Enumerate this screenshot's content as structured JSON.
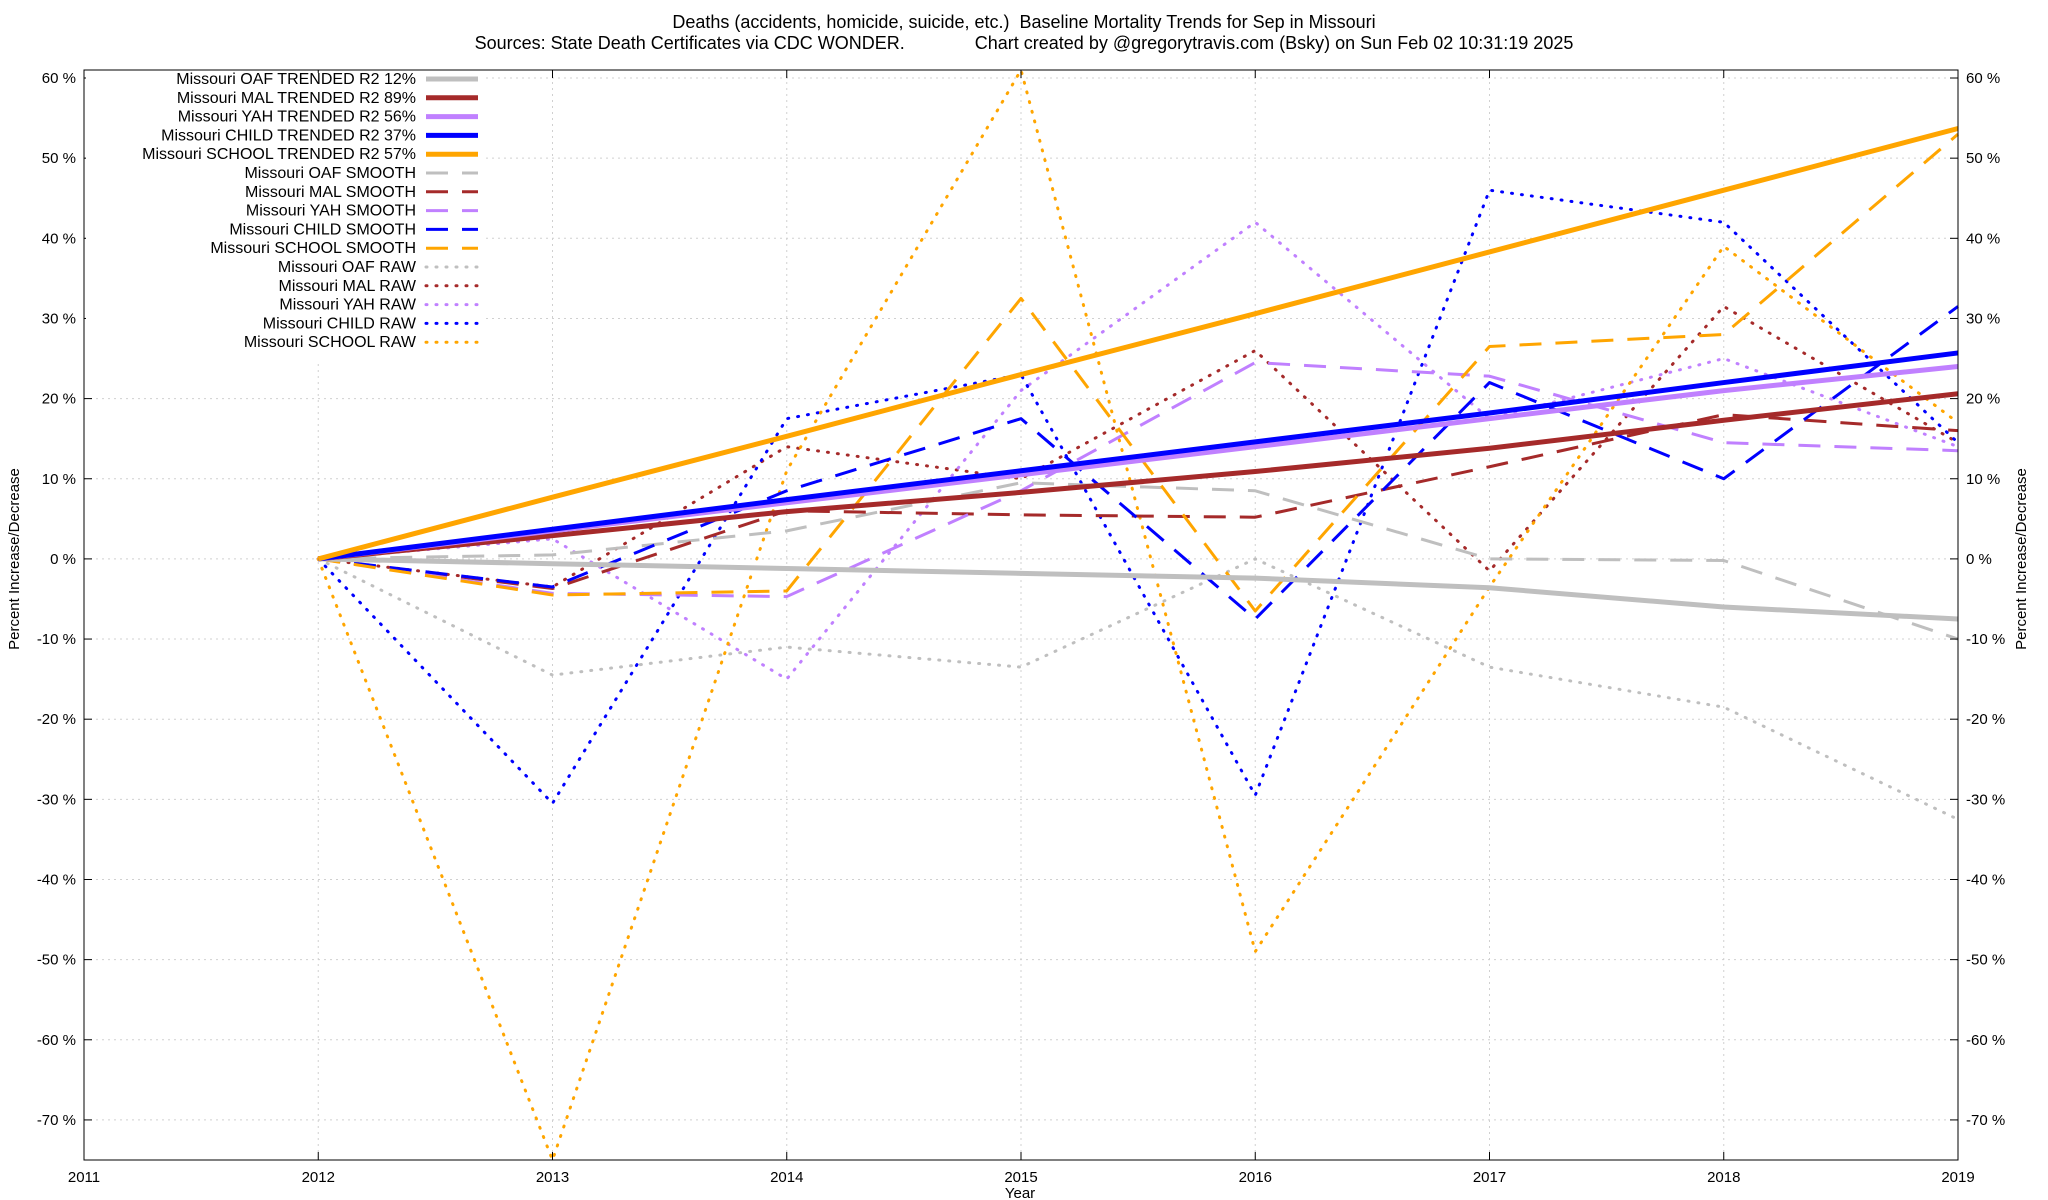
{
  "chart_data": {
    "type": "line",
    "title": "Deaths (accidents, homicide, suicide, etc.)  Baseline Mortality Trends for Sep in Missouri",
    "subtitle": "Sources: State Death Certificates via CDC WONDER.              Chart created by @gregorytravis.com (Bsky) on Sun Feb 02 10:31:19 2025",
    "xlabel": "Year",
    "ylabel": "Percent Increase/Decrease",
    "y2label": "Percent Increase/Decrease",
    "xlim": [
      2011,
      2019
    ],
    "ylim": [
      -75,
      61
    ],
    "x_ticks": [
      "2011",
      "2012",
      "2013",
      "2014",
      "2015",
      "2016",
      "2017",
      "2018",
      "2019"
    ],
    "y_ticks": [
      "60 %",
      "50 %",
      "40 %",
      "30 %",
      "20 %",
      "10 %",
      "0 %",
      "-10 %",
      "-20 %",
      "-30 %",
      "-40 %",
      "-50 %",
      "-60 %",
      "-70 %"
    ],
    "y_tick_values": [
      60,
      50,
      40,
      30,
      20,
      10,
      0,
      -10,
      -20,
      -30,
      -40,
      -50,
      -60,
      -70
    ],
    "grid": true,
    "legend_position": "top-left",
    "x": [
      2012,
      2013,
      2014,
      2015,
      2016,
      2017,
      2018,
      2019
    ],
    "series": [
      {
        "name": "Missouri OAF TRENDED R2  12%",
        "style": "trend",
        "color": "#bfbfbf",
        "values": [
          0,
          -0.6,
          -1.2,
          -1.8,
          -2.4,
          -3.6,
          -6,
          -7.5
        ]
      },
      {
        "name": "Missouri MAL TRENDED R2  89%",
        "style": "trend",
        "color": "#a52a2a",
        "values": [
          0,
          2.9,
          5.9,
          8.3,
          10.9,
          13.8,
          17.3,
          20.6
        ]
      },
      {
        "name": "Missouri YAH TRENDED R2  56%",
        "style": "trend",
        "color": "#c080ff",
        "values": [
          0,
          3.5,
          7,
          10.5,
          14,
          17.5,
          21,
          24
        ]
      },
      {
        "name": "Missouri CHILD TRENDED R2  37%",
        "style": "trend",
        "color": "#0000ff",
        "values": [
          0,
          3.7,
          7.4,
          11,
          14.6,
          18.2,
          22,
          25.7
        ]
      },
      {
        "name": "Missouri SCHOOL TRENDED R2  57%",
        "style": "trend",
        "color": "#ffa500",
        "values": [
          0,
          7.7,
          15.3,
          23,
          30.6,
          38.3,
          46,
          53.7
        ]
      },
      {
        "name": "Missouri OAF SMOOTH",
        "style": "smooth",
        "color": "#bfbfbf",
        "values": [
          0,
          0.5,
          3.5,
          9.5,
          8.5,
          0,
          -0.2,
          -10
        ]
      },
      {
        "name": "Missouri MAL SMOOTH",
        "style": "smooth",
        "color": "#a52a2a",
        "values": [
          0,
          -3.7,
          6,
          5.5,
          5.2,
          11.5,
          18,
          16
        ]
      },
      {
        "name": "Missouri YAH SMOOTH",
        "style": "smooth",
        "color": "#c080ff",
        "values": [
          0,
          -4.3,
          -4.7,
          8.5,
          24.5,
          22.8,
          14.5,
          13.5
        ]
      },
      {
        "name": "Missouri CHILD SMOOTH",
        "style": "smooth",
        "color": "#0000ff",
        "values": [
          0,
          -3.5,
          8.5,
          17.5,
          -7.5,
          22,
          10,
          31.5
        ]
      },
      {
        "name": "Missouri SCHOOL SMOOTH",
        "style": "smooth",
        "color": "#ffa500",
        "values": [
          0,
          -4.5,
          -4,
          32.5,
          -6.5,
          26.5,
          28,
          53
        ]
      },
      {
        "name": "Missouri OAF RAW",
        "style": "raw",
        "color": "#bfbfbf",
        "values": [
          0,
          -14.5,
          -11,
          -13.5,
          0,
          -13.5,
          -18.5,
          -32.5
        ]
      },
      {
        "name": "Missouri MAL RAW",
        "style": "raw",
        "color": "#a52a2a",
        "values": [
          0,
          -3.5,
          14,
          10,
          26,
          -1.5,
          31.5,
          14.5
        ]
      },
      {
        "name": "Missouri YAH RAW",
        "style": "raw",
        "color": "#c080ff",
        "values": [
          0,
          2.5,
          -15,
          21,
          42,
          17.5,
          25,
          14
        ]
      },
      {
        "name": "Missouri CHILD RAW",
        "style": "raw",
        "color": "#0000ff",
        "values": [
          0,
          -30.5,
          17.5,
          23,
          -29.5,
          46,
          42,
          14.5
        ]
      },
      {
        "name": "Missouri SCHOOL RAW",
        "style": "raw",
        "color": "#ffa500",
        "values": [
          0,
          -75,
          11,
          61,
          -49,
          -3.5,
          39,
          17
        ]
      }
    ]
  }
}
